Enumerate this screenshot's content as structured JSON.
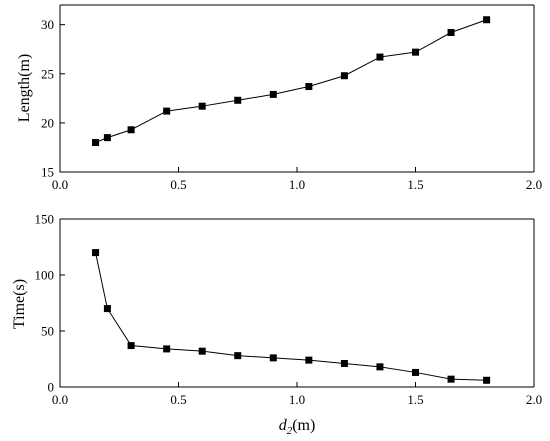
{
  "chart_data": [
    {
      "type": "line",
      "xlabel": "",
      "ylabel": "Length(m)",
      "xlim": [
        0.0,
        2.0
      ],
      "ylim": [
        15,
        32
      ],
      "xticks": [
        "0.0",
        "0.5",
        "1.0",
        "1.5",
        "2.0"
      ],
      "yticks": [
        "15",
        "20",
        "25",
        "30"
      ],
      "grid": false,
      "series": [
        {
          "x": [
            0.15,
            0.2,
            0.3,
            0.45,
            0.6,
            0.75,
            0.9,
            1.05,
            1.2,
            1.35,
            1.5,
            1.65,
            1.8
          ],
          "y": [
            18.0,
            18.5,
            19.3,
            21.2,
            21.7,
            22.3,
            22.9,
            23.7,
            24.8,
            26.7,
            27.2,
            29.2,
            30.5
          ]
        }
      ]
    },
    {
      "type": "line",
      "xlabel": "(m)",
      "xlabel_var": "d",
      "xlabel_sub": "2",
      "ylabel": "Time(s)",
      "xlim": [
        0.0,
        2.0
      ],
      "ylim": [
        0,
        150
      ],
      "xticks": [
        "0.0",
        "0.5",
        "1.0",
        "1.5",
        "2.0"
      ],
      "yticks": [
        "0",
        "50",
        "100",
        "150"
      ],
      "grid": false,
      "series": [
        {
          "x": [
            0.15,
            0.2,
            0.3,
            0.45,
            0.6,
            0.75,
            0.9,
            1.05,
            1.2,
            1.35,
            1.5,
            1.65,
            1.8
          ],
          "y": [
            120,
            70,
            37,
            34,
            32,
            28,
            26,
            24,
            21,
            18,
            13,
            7,
            6
          ]
        }
      ]
    }
  ]
}
